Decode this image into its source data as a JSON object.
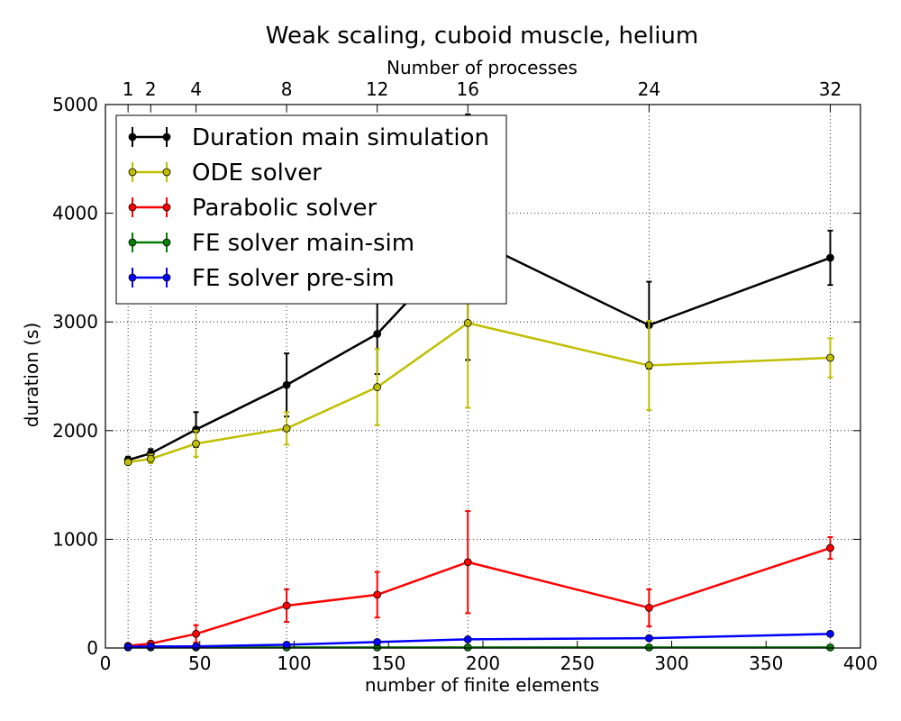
{
  "chart_data": {
    "type": "line",
    "title": "Weak scaling, cuboid muscle, helium",
    "xlabel": "number of finite elements",
    "ylabel": "duration (s)",
    "top_xlabel": "Number of processes",
    "xlim": [
      0,
      400
    ],
    "ylim": [
      0,
      5000
    ],
    "x_ticks": [
      0,
      50,
      100,
      150,
      200,
      250,
      300,
      350,
      400
    ],
    "y_ticks": [
      0,
      1000,
      2000,
      3000,
      4000,
      5000
    ],
    "top_ticks": [
      {
        "x": 12,
        "label": "1"
      },
      {
        "x": 24,
        "label": "2"
      },
      {
        "x": 48,
        "label": "4"
      },
      {
        "x": 96,
        "label": "8"
      },
      {
        "x": 144,
        "label": "12"
      },
      {
        "x": 192,
        "label": "16"
      },
      {
        "x": 288,
        "label": "24"
      },
      {
        "x": 384,
        "label": "32"
      }
    ],
    "grid": true,
    "legend_position": "top-left",
    "x": [
      12,
      24,
      48,
      96,
      144,
      192,
      288,
      384
    ],
    "series": [
      {
        "name": "Duration main simulation",
        "color": "#000000",
        "values": [
          1730,
          1790,
          2010,
          2420,
          2890,
          3780,
          2970,
          3590
        ],
        "errors": [
          30,
          40,
          160,
          290,
          370,
          1130,
          400,
          250
        ]
      },
      {
        "name": "ODE solver",
        "color": "#bfbf00",
        "values": [
          1710,
          1740,
          1880,
          2020,
          2400,
          2990,
          2600,
          2670
        ],
        "errors": [
          20,
          40,
          120,
          150,
          350,
          780,
          410,
          180
        ]
      },
      {
        "name": "Parabolic solver",
        "color": "#ff0000",
        "values": [
          20,
          40,
          130,
          390,
          490,
          790,
          370,
          920
        ],
        "errors": [
          10,
          20,
          80,
          150,
          210,
          470,
          170,
          100
        ]
      },
      {
        "name": "FE solver main-sim",
        "color": "#008000",
        "values": [
          5,
          5,
          5,
          5,
          5,
          5,
          5,
          5
        ],
        "errors": [
          0,
          0,
          0,
          0,
          0,
          0,
          0,
          0
        ]
      },
      {
        "name": "FE solver pre-sim",
        "color": "#0000ff",
        "values": [
          10,
          15,
          15,
          30,
          55,
          80,
          90,
          130
        ],
        "errors": [
          0,
          0,
          0,
          0,
          0,
          0,
          0,
          0
        ]
      }
    ]
  }
}
